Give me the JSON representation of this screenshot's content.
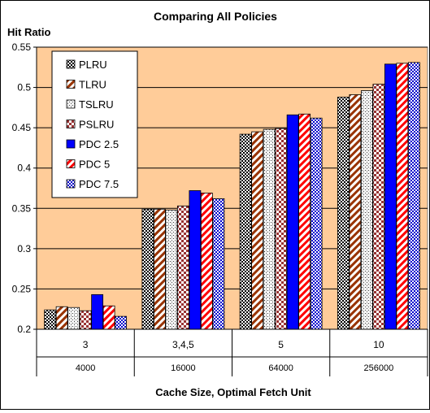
{
  "chart_data": {
    "type": "bar",
    "title": "Comparing All Policies",
    "ylabel": "Hit Ratio",
    "xlabel": "Cache Size, Optimal Fetch Unit",
    "ylim": [
      0.2,
      0.55
    ],
    "yticks": [
      "0.2",
      "0.25",
      "0.3",
      "0.35",
      "0.4",
      "0.45",
      "0.5",
      "0.55"
    ],
    "categories": [
      {
        "top": "3",
        "bottom": "4000"
      },
      {
        "top": "3,4,5",
        "bottom": "16000"
      },
      {
        "top": "5",
        "bottom": "64000"
      },
      {
        "top": "10",
        "bottom": "256000"
      }
    ],
    "series": [
      {
        "name": "PLRU",
        "pattern": "checker",
        "values": [
          0.224,
          0.349,
          0.442,
          0.488
        ]
      },
      {
        "name": "TLRU",
        "pattern": "diag-brown",
        "values": [
          0.228,
          0.349,
          0.445,
          0.491
        ]
      },
      {
        "name": "TSLRU",
        "pattern": "dots",
        "values": [
          0.227,
          0.348,
          0.448,
          0.496
        ]
      },
      {
        "name": "PSLRU",
        "pattern": "diamond-red",
        "values": [
          0.223,
          0.353,
          0.449,
          0.504
        ]
      },
      {
        "name": "PDC 2.5",
        "pattern": "solid-blue",
        "values": [
          0.243,
          0.372,
          0.466,
          0.529
        ]
      },
      {
        "name": "PDC 5",
        "pattern": "diag-red",
        "values": [
          0.229,
          0.369,
          0.467,
          0.53
        ]
      },
      {
        "name": "PDC 7.5",
        "pattern": "checker-blue",
        "values": [
          0.216,
          0.362,
          0.462,
          0.531
        ]
      }
    ],
    "plot_background": "#FFCC99",
    "legend_position": "top-left",
    "grid": true
  }
}
